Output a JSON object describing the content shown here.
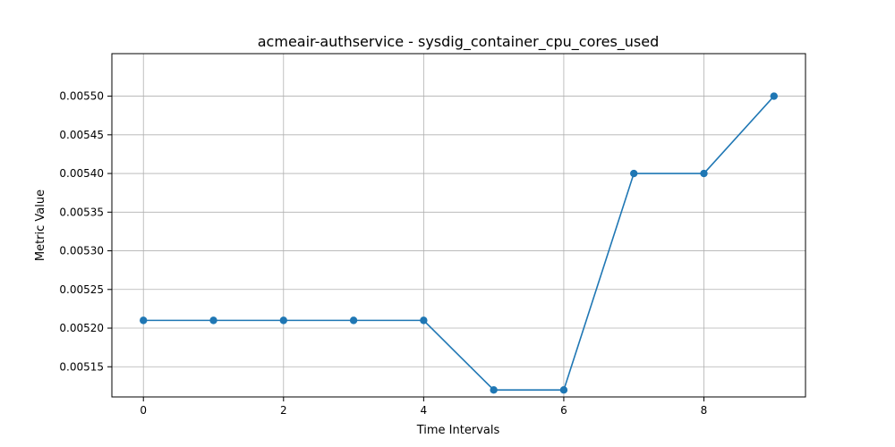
{
  "chart_data": {
    "type": "line",
    "title": "acmeair-authservice - sysdig_container_cpu_cores_used",
    "xlabel": "Time Intervals",
    "ylabel": "Metric Value",
    "x": [
      0,
      1,
      2,
      3,
      4,
      5,
      6,
      7,
      8,
      9
    ],
    "series": [
      {
        "values": [
          0.00521,
          0.00521,
          0.00521,
          0.00521,
          0.00521,
          0.00512,
          0.00512,
          0.0054,
          0.0054,
          0.0055
        ],
        "color": "#1f77b4",
        "marker": "circle"
      }
    ],
    "xticks": [
      0,
      2,
      4,
      6,
      8
    ],
    "xtick_labels": [
      "0",
      "2",
      "4",
      "6",
      "8"
    ],
    "yticks": [
      0.00515,
      0.0052,
      0.00525,
      0.0053,
      0.00535,
      0.0054,
      0.00545,
      0.0055
    ],
    "ytick_labels": [
      "0.00515",
      "0.00520",
      "0.00525",
      "0.00530",
      "0.00535",
      "0.00540",
      "0.00545",
      "0.00550"
    ],
    "xlim": [
      -0.45,
      9.45
    ],
    "ylim": [
      0.005111,
      0.005555
    ],
    "grid": true
  }
}
